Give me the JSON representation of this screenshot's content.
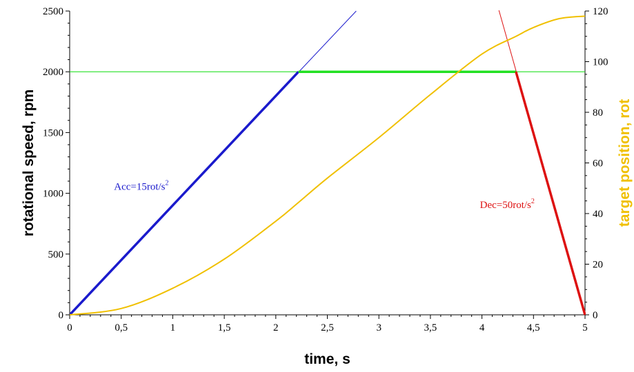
{
  "chart_data": {
    "type": "line",
    "title": "",
    "xlabel": "time, s",
    "ylabel_left": "rotational speed, rpm",
    "ylabel_right": "target position, rot",
    "xlim": [
      0,
      5
    ],
    "ylim_left": [
      0,
      2500
    ],
    "ylim_right": [
      0,
      120
    ],
    "x_ticks": [
      "0",
      "0,5",
      "1",
      "1,5",
      "2",
      "2,5",
      "3",
      "3,5",
      "4",
      "4,5",
      "5"
    ],
    "y_left_ticks": [
      "0",
      "500",
      "1000",
      "1500",
      "2000",
      "2500"
    ],
    "y_right_ticks": [
      "0",
      "20",
      "40",
      "60",
      "80",
      "100",
      "120"
    ],
    "colors": {
      "acceleration": "#1a1acc",
      "constant_speed": "#22e022",
      "deceleration": "#dd1111",
      "position": "#f0c000",
      "right_axis_label": "#f0c000"
    },
    "series": [
      {
        "key": "accel_extension",
        "axis": "left",
        "x": [
          0,
          2.78
        ],
        "y": [
          0,
          2500
        ]
      },
      {
        "key": "speed_limit",
        "axis": "left",
        "x": [
          0,
          5
        ],
        "y": [
          2000,
          2000
        ]
      },
      {
        "key": "decel_extension",
        "axis": "left",
        "x": [
          4.15,
          5
        ],
        "y": [
          2550,
          0
        ]
      },
      {
        "key": "acceleration",
        "axis": "left",
        "x": [
          0,
          2.22
        ],
        "y": [
          0,
          2000
        ]
      },
      {
        "key": "constant_speed",
        "axis": "left",
        "x": [
          2.22,
          4.33
        ],
        "y": [
          2000,
          2000
        ]
      },
      {
        "key": "deceleration",
        "axis": "left",
        "x": [
          4.33,
          5
        ],
        "y": [
          2000,
          0
        ]
      },
      {
        "key": "target_position",
        "axis": "right",
        "x": [
          0,
          0.5,
          1,
          1.5,
          2,
          2.22,
          2.5,
          3,
          3.5,
          4,
          4.33,
          4.5,
          4.75,
          5
        ],
        "y": [
          0,
          2.5,
          10.5,
          22,
          37,
          44.4,
          54,
          70,
          87,
          103,
          110,
          113.5,
          117,
          118
        ]
      }
    ],
    "annotations": [
      {
        "text": "Acc=15rot/s",
        "sup": "2",
        "color": "#1a1acc"
      },
      {
        "text": "Dec=50rot/s",
        "sup": "2",
        "color": "#dd1111"
      }
    ]
  }
}
